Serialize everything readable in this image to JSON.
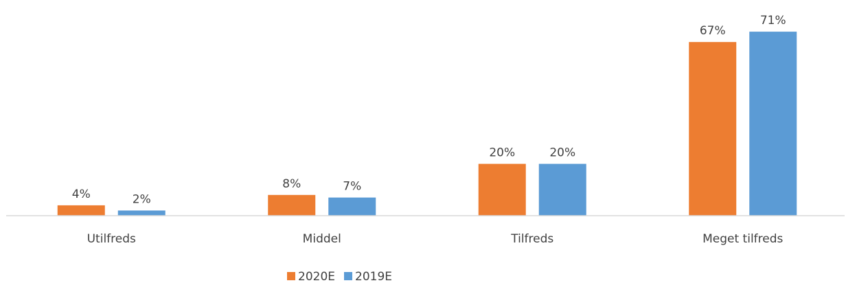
{
  "chart_data": {
    "type": "bar",
    "categories": [
      "Utilfreds",
      "Middel",
      "Tilfreds",
      "Meget tilfreds"
    ],
    "series": [
      {
        "name": "2020E",
        "color": "#ed7d31",
        "values": [
          4,
          8,
          20,
          67
        ],
        "value_labels": [
          "4%",
          "8%",
          "20%",
          "67%"
        ]
      },
      {
        "name": "2019E",
        "color": "#5b9bd5",
        "values": [
          2,
          7,
          20,
          71
        ],
        "value_labels": [
          "2%",
          "7%",
          "20%",
          "71%"
        ]
      }
    ],
    "ylim": [
      0,
      75
    ],
    "legend": "bottom"
  }
}
